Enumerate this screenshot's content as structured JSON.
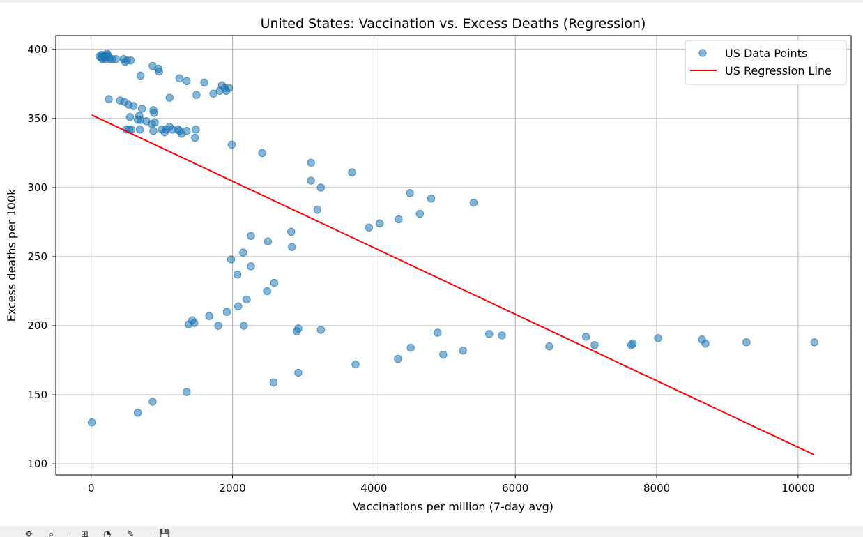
{
  "chart_data": {
    "type": "scatter",
    "title": "United States: Vaccination vs. Excess Deaths (Regression)",
    "xlabel": "Vaccinations per million (7-day avg)",
    "ylabel": "Excess deaths per 100k",
    "xlim": [
      -500,
      10750
    ],
    "ylim": [
      92,
      410
    ],
    "x_ticks": [
      0,
      2000,
      4000,
      6000,
      8000,
      10000
    ],
    "y_ticks": [
      100,
      150,
      200,
      250,
      300,
      350,
      400
    ],
    "grid": true,
    "legend_position": "top-right",
    "series": [
      {
        "name": "US Data Points",
        "kind": "scatter",
        "color": "#1f77b4",
        "points": [
          [
            120,
            395
          ],
          [
            140,
            394
          ],
          [
            150,
            396
          ],
          [
            160,
            393
          ],
          [
            175,
            395
          ],
          [
            190,
            394
          ],
          [
            200,
            393
          ],
          [
            210,
            395
          ],
          [
            225,
            397
          ],
          [
            235,
            396
          ],
          [
            250,
            394
          ],
          [
            265,
            393
          ],
          [
            300,
            393
          ],
          [
            350,
            393
          ],
          [
            460,
            393
          ],
          [
            480,
            391
          ],
          [
            510,
            392
          ],
          [
            560,
            392
          ],
          [
            700,
            381
          ],
          [
            870,
            388
          ],
          [
            950,
            386
          ],
          [
            960,
            384
          ],
          [
            1250,
            379
          ],
          [
            1350,
            377
          ],
          [
            1490,
            367
          ],
          [
            1600,
            376
          ],
          [
            1730,
            368
          ],
          [
            1820,
            370
          ],
          [
            1850,
            374
          ],
          [
            1890,
            372
          ],
          [
            1910,
            370
          ],
          [
            1950,
            372
          ],
          [
            1110,
            365
          ],
          [
            250,
            364
          ],
          [
            410,
            363
          ],
          [
            470,
            362
          ],
          [
            530,
            360
          ],
          [
            600,
            359
          ],
          [
            720,
            357
          ],
          [
            880,
            356
          ],
          [
            890,
            354
          ],
          [
            550,
            351
          ],
          [
            680,
            352
          ],
          [
            700,
            349
          ],
          [
            660,
            349
          ],
          [
            780,
            348
          ],
          [
            860,
            346
          ],
          [
            900,
            347
          ],
          [
            500,
            342
          ],
          [
            540,
            342
          ],
          [
            570,
            342
          ],
          [
            690,
            342
          ],
          [
            880,
            341
          ],
          [
            1000,
            342
          ],
          [
            1040,
            340
          ],
          [
            1060,
            342
          ],
          [
            1110,
            344
          ],
          [
            1150,
            342
          ],
          [
            1230,
            342
          ],
          [
            1250,
            341
          ],
          [
            1280,
            339
          ],
          [
            1350,
            341
          ],
          [
            1480,
            342
          ],
          [
            1470,
            336
          ],
          [
            1990,
            331
          ],
          [
            2420,
            325
          ],
          [
            3110,
            318
          ],
          [
            3690,
            311
          ],
          [
            3110,
            305
          ],
          [
            3250,
            300
          ],
          [
            4510,
            296
          ],
          [
            4810,
            292
          ],
          [
            5410,
            289
          ],
          [
            3200,
            284
          ],
          [
            4650,
            281
          ],
          [
            4350,
            277
          ],
          [
            4080,
            274
          ],
          [
            3930,
            271
          ],
          [
            2830,
            268
          ],
          [
            2260,
            265
          ],
          [
            2500,
            261
          ],
          [
            2840,
            257
          ],
          [
            2150,
            253
          ],
          [
            1980,
            248
          ],
          [
            2260,
            243
          ],
          [
            2070,
            237
          ],
          [
            2590,
            231
          ],
          [
            2490,
            225
          ],
          [
            2200,
            219
          ],
          [
            2080,
            214
          ],
          [
            1920,
            210
          ],
          [
            1670,
            207
          ],
          [
            1430,
            204
          ],
          [
            1460,
            202
          ],
          [
            1380,
            201
          ],
          [
            1800,
            200
          ],
          [
            2160,
            200
          ],
          [
            2910,
            196
          ],
          [
            2930,
            198
          ],
          [
            3250,
            197
          ],
          [
            4900,
            195
          ],
          [
            5630,
            194
          ],
          [
            5810,
            193
          ],
          [
            7000,
            192
          ],
          [
            8020,
            191
          ],
          [
            8640,
            190
          ],
          [
            9270,
            188
          ],
          [
            10230,
            188
          ],
          [
            7120,
            186
          ],
          [
            7640,
            186
          ],
          [
            7660,
            187
          ],
          [
            8690,
            187
          ],
          [
            6480,
            185
          ],
          [
            4520,
            184
          ],
          [
            5260,
            182
          ],
          [
            4980,
            179
          ],
          [
            4340,
            176
          ],
          [
            3740,
            172
          ],
          [
            2930,
            166
          ],
          [
            2580,
            159
          ],
          [
            1350,
            152
          ],
          [
            870,
            145
          ],
          [
            660,
            137
          ],
          [
            10,
            130
          ]
        ]
      },
      {
        "name": "US Regression Line",
        "kind": "line",
        "color": "#ff0000",
        "points": [
          [
            10,
            352.5
          ],
          [
            10230,
            106.5
          ]
        ]
      }
    ]
  },
  "toolbar": {
    "icons": [
      "pan-icon",
      "zoom-icon",
      "subplots-icon",
      "customize-icon",
      "edit-icon",
      "save-icon"
    ],
    "glyphs": [
      "✥",
      "⌕",
      "⊞",
      "◔",
      "✎",
      "💾"
    ]
  }
}
